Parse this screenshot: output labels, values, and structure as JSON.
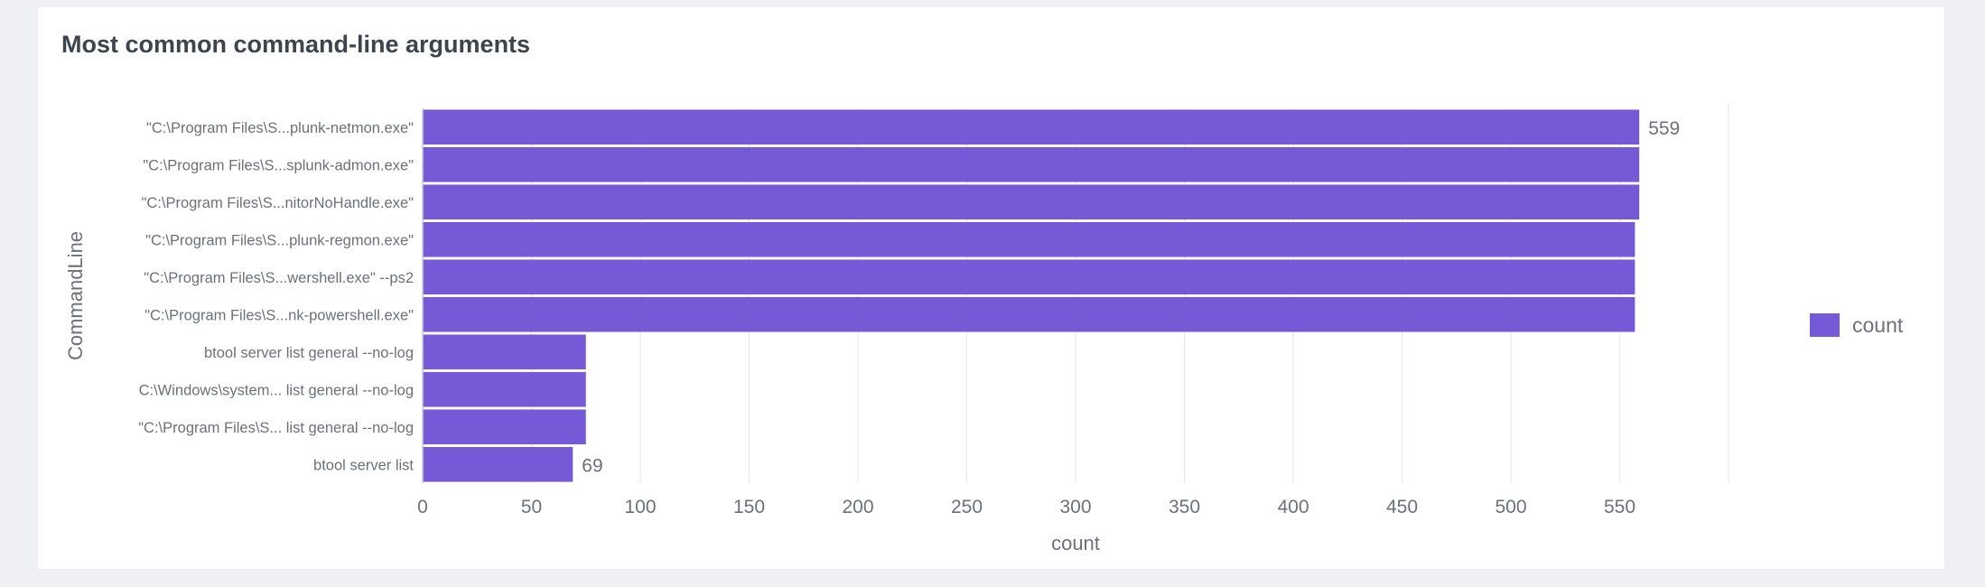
{
  "panel": {
    "title": "Most common command-line arguments"
  },
  "colors": {
    "bar": "#7559d6",
    "grid": "#e4e6ea",
    "axis": "#c8ccd2",
    "text": "#6b7179",
    "label": "#3c444d"
  },
  "chart_data": {
    "type": "bar",
    "orientation": "horizontal",
    "title": "Most common command-line arguments",
    "xlabel": "count",
    "ylabel": "CommandLine",
    "xlim": [
      0,
      600
    ],
    "x_ticks": [
      0,
      50,
      100,
      150,
      200,
      250,
      300,
      350,
      400,
      450,
      500,
      550
    ],
    "grid": true,
    "legend": {
      "position": "right",
      "entries": [
        "count"
      ]
    },
    "categories": [
      "\"C:\\Program Files\\S...plunk-netmon.exe\"",
      "\"C:\\Program Files\\S...splunk-admon.exe\"",
      "\"C:\\Program Files\\S...nitorNoHandle.exe\"",
      "\"C:\\Program Files\\S...plunk-regmon.exe\"",
      "\"C:\\Program Files\\S...wershell.exe\" --ps2",
      "\"C:\\Program Files\\S...nk-powershell.exe\"",
      "btool server list general --no-log",
      "C:\\Windows\\system... list general --no-log",
      "\"C:\\Program Files\\S... list general --no-log",
      "btool server list"
    ],
    "series": [
      {
        "name": "count",
        "values": [
          559,
          559,
          559,
          557,
          557,
          557,
          75,
          75,
          75,
          69
        ]
      }
    ],
    "data_labels": [
      {
        "index": 0,
        "text": "559"
      },
      {
        "index": 9,
        "text": "69"
      }
    ]
  }
}
